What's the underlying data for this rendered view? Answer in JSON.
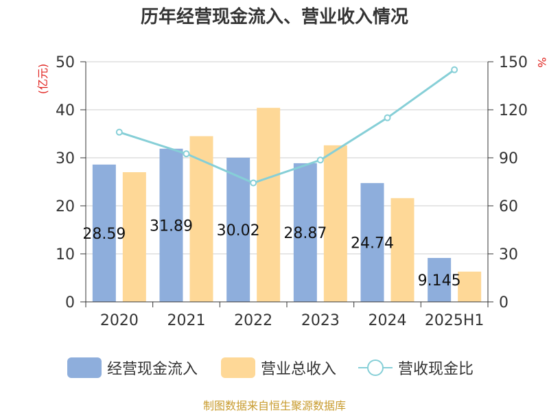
{
  "title": "历年经营现金流入、营业收入情况",
  "source": "制图数据来自恒生聚源数据库",
  "colors": {
    "cash_inflow": "#8eaedc",
    "revenue": "#fed897",
    "ratio": "#86cfd7",
    "axis_unit": "#e0201c",
    "source": "#c89b2e",
    "text": "#333333",
    "grid": "#cccccc"
  },
  "legend": {
    "cash_inflow": "经营现金流入",
    "revenue": "营业总收入",
    "ratio": "营收现金比"
  },
  "chart_data": {
    "type": "bar",
    "title": "历年经营现金流入、营业收入情况",
    "categories": [
      "2020",
      "2021",
      "2022",
      "2023",
      "2024",
      "2025H1"
    ],
    "left_axis": {
      "unit": "(亿元)",
      "ylim": [
        0,
        50
      ],
      "ticks": [
        "0",
        "10",
        "20",
        "30",
        "40",
        "50"
      ]
    },
    "right_axis": {
      "unit": "%",
      "ylim": [
        0,
        150
      ],
      "ticks": [
        "0",
        "30",
        "60",
        "90",
        "120",
        "150"
      ]
    },
    "grid": true,
    "legend_position": "bottom",
    "series": [
      {
        "name": "经营现金流入",
        "type": "bar",
        "axis": "left",
        "values": [
          28.59,
          31.89,
          30.02,
          28.87,
          24.74,
          9.145
        ],
        "labels": [
          "28.59",
          "31.89",
          "30.02",
          "28.87",
          "24.74",
          "9.145"
        ]
      },
      {
        "name": "营业总收入",
        "type": "bar",
        "axis": "left",
        "values": [
          27.0,
          34.5,
          40.4,
          32.6,
          21.6,
          6.3
        ]
      },
      {
        "name": "营收现金比",
        "type": "line",
        "axis": "right",
        "values": [
          106,
          92.5,
          74.3,
          88.6,
          115,
          145
        ]
      }
    ]
  }
}
